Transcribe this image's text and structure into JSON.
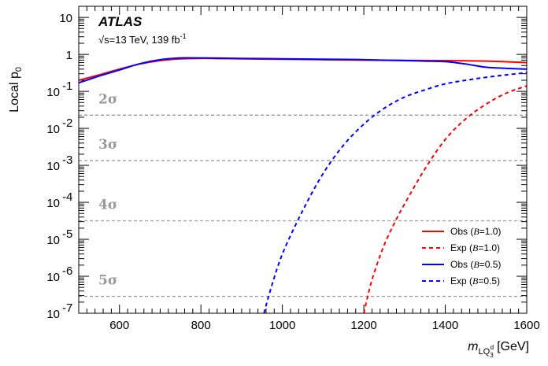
{
  "chart_data": {
    "type": "line",
    "experiment": "ATLAS",
    "energy_label": "√s=13 TeV, 139 fb",
    "lumi_superscript": "-1",
    "xlabel": "m",
    "xlabel_sub": "LQ",
    "xlabel_subsub": "3",
    "xlabel_subsup": "d",
    "xlabel_unit": "[GeV]",
    "ylabel": "Local p",
    "ylabel_sub": "0",
    "xlim": [
      500,
      1600
    ],
    "ylim": [
      1e-07,
      20
    ],
    "yscale": "log",
    "x_ticks": [
      600,
      800,
      1000,
      1200,
      1400,
      1600
    ],
    "y_ticks": [
      {
        "value": 1e-07,
        "base": "10",
        "exp": "-7"
      },
      {
        "value": 1e-06,
        "base": "10",
        "exp": "-6"
      },
      {
        "value": 1e-05,
        "base": "10",
        "exp": "-5"
      },
      {
        "value": 0.0001,
        "base": "10",
        "exp": "-4"
      },
      {
        "value": 0.001,
        "base": "10",
        "exp": "-3"
      },
      {
        "value": 0.01,
        "base": "10",
        "exp": "-2"
      },
      {
        "value": 0.1,
        "base": "10",
        "exp": "-1"
      },
      {
        "value": 1,
        "base": "1",
        "exp": ""
      },
      {
        "value": 10,
        "base": "10",
        "exp": ""
      }
    ],
    "significance_lines": [
      {
        "label": "2σ",
        "value": 0.02275
      },
      {
        "label": "3σ",
        "value": 0.00135
      },
      {
        "label": "4σ",
        "value": 3.17e-05
      },
      {
        "label": "5σ",
        "value": 2.87e-07
      }
    ],
    "series": [
      {
        "name": "Obs (B=1.0)",
        "legend_pre": "Obs (",
        "legend_var": "B",
        "legend_post": "=1.0)",
        "color": "#ff0000",
        "dash": false,
        "x": [
          500,
          550,
          600,
          650,
          700,
          750,
          800,
          850,
          900,
          1000,
          1100,
          1200,
          1300,
          1400,
          1500,
          1600
        ],
        "y": [
          0.2,
          0.28,
          0.4,
          0.55,
          0.68,
          0.76,
          0.78,
          0.77,
          0.76,
          0.74,
          0.72,
          0.7,
          0.69,
          0.68,
          0.66,
          0.6
        ]
      },
      {
        "name": "Exp (B=1.0)",
        "legend_pre": "Exp (",
        "legend_var": "B",
        "legend_post": "=1.0)",
        "color": "#ff0000",
        "dash": true,
        "x": [
          1200,
          1220,
          1250,
          1280,
          1300,
          1350,
          1400,
          1450,
          1500,
          1550,
          1600
        ],
        "y": [
          1e-07,
          8e-07,
          7e-06,
          3.5e-05,
          9e-05,
          0.0008,
          0.005,
          0.018,
          0.045,
          0.09,
          0.14
        ]
      },
      {
        "name": "Obs (B=0.5)",
        "legend_pre": "Obs (",
        "legend_var": "B",
        "legend_post": "=0.5)",
        "color": "#0000ff",
        "dash": false,
        "x": [
          500,
          550,
          600,
          650,
          700,
          750,
          800,
          850,
          900,
          1000,
          1100,
          1200,
          1300,
          1350,
          1400,
          1450,
          1500,
          1550,
          1600
        ],
        "y": [
          0.17,
          0.26,
          0.38,
          0.56,
          0.72,
          0.8,
          0.8,
          0.79,
          0.78,
          0.76,
          0.74,
          0.72,
          0.68,
          0.66,
          0.64,
          0.55,
          0.45,
          0.42,
          0.4
        ]
      },
      {
        "name": "Exp (B=0.5)",
        "legend_pre": "Exp (",
        "legend_var": "B",
        "legend_post": "=0.5)",
        "color": "#0000ff",
        "dash": true,
        "x": [
          955,
          970,
          1000,
          1050,
          1100,
          1150,
          1200,
          1250,
          1300,
          1350,
          1400,
          1450,
          1500,
          1550,
          1600
        ],
        "y": [
          1e-07,
          4e-07,
          4e-06,
          6e-05,
          0.0006,
          0.0035,
          0.013,
          0.035,
          0.07,
          0.11,
          0.16,
          0.2,
          0.24,
          0.28,
          0.32
        ]
      }
    ],
    "legend_position": "bottom-right"
  }
}
